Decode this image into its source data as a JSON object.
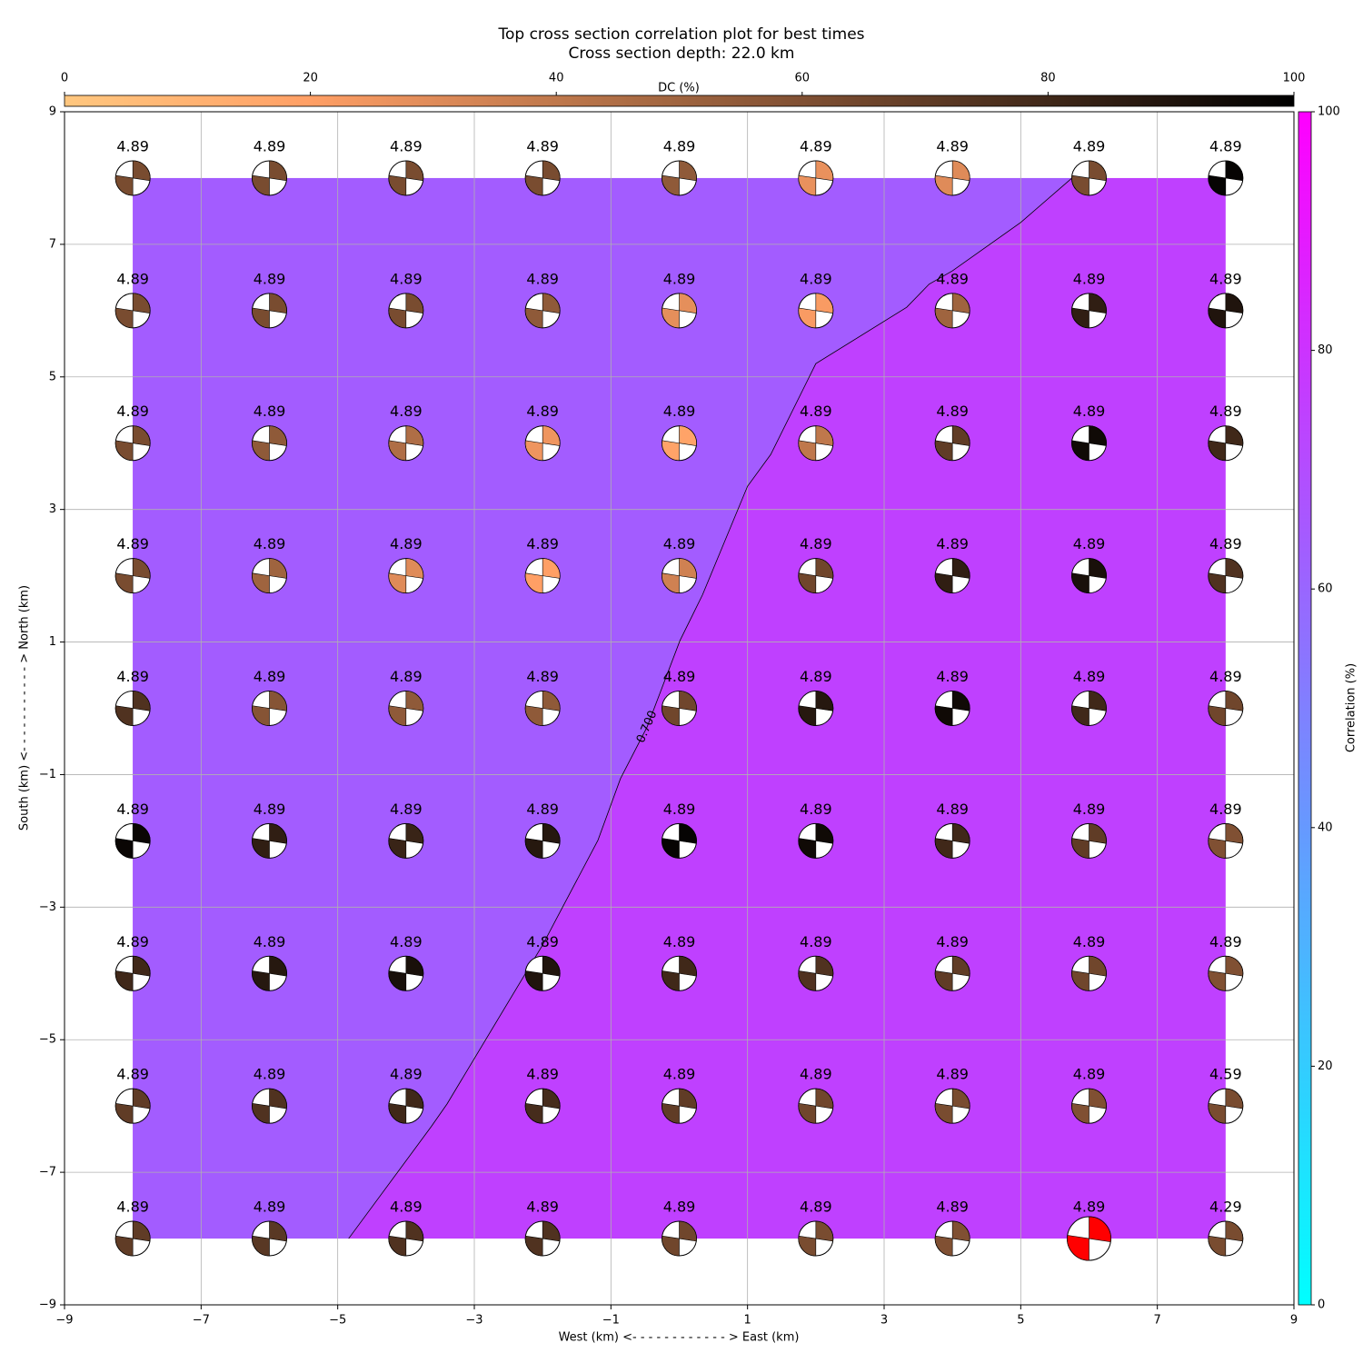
{
  "chart_data": {
    "type": "beachball-grid",
    "title": "Top cross section correlation plot for best times",
    "subtitle": "Cross section depth: 22.0 km",
    "x_label": "West (km) <- - - - - - - - - - - - > East (km)",
    "y_label": "South (km) <- - - - - - - - - - - > North (km)",
    "xlim": [
      -9,
      9
    ],
    "ylim": [
      -9,
      9
    ],
    "xticks": [
      {
        "value": -9,
        "label": "−9"
      },
      {
        "value": -7,
        "label": "−7"
      },
      {
        "value": -5,
        "label": "−5"
      },
      {
        "value": -3,
        "label": "−3"
      },
      {
        "value": -1,
        "label": "−1"
      },
      1,
      3,
      5,
      7,
      9
    ],
    "yticks": [
      {
        "value": -9,
        "label": "−9"
      },
      {
        "value": -7,
        "label": "−7"
      },
      {
        "value": -5,
        "label": "−5"
      },
      {
        "value": -3,
        "label": "−3"
      },
      {
        "value": -1,
        "label": "−1"
      },
      1,
      3,
      5,
      7,
      9
    ],
    "grid": true,
    "x": [
      -8,
      -6,
      -4,
      -2,
      0,
      2,
      4,
      6,
      8
    ],
    "y": [
      8,
      6,
      4,
      2,
      0,
      -2,
      -4,
      -6,
      -8
    ],
    "magnitudes": [
      [
        4.89,
        4.89,
        4.89,
        4.89,
        4.89,
        4.89,
        4.89,
        4.89,
        4.89
      ],
      [
        4.89,
        4.89,
        4.89,
        4.89,
        4.89,
        4.89,
        4.89,
        4.89,
        4.89
      ],
      [
        4.89,
        4.89,
        4.89,
        4.89,
        4.89,
        4.89,
        4.89,
        4.89,
        4.89
      ],
      [
        4.89,
        4.89,
        4.89,
        4.89,
        4.89,
        4.89,
        4.89,
        4.89,
        4.89
      ],
      [
        4.89,
        4.89,
        4.89,
        4.89,
        4.89,
        4.89,
        4.89,
        4.89,
        4.89
      ],
      [
        4.89,
        4.89,
        4.89,
        4.89,
        4.89,
        4.89,
        4.89,
        4.89,
        4.89
      ],
      [
        4.89,
        4.89,
        4.89,
        4.89,
        4.89,
        4.89,
        4.89,
        4.89,
        4.89
      ],
      [
        4.89,
        4.89,
        4.89,
        4.89,
        4.89,
        4.89,
        4.89,
        4.89,
        4.59
      ],
      [
        4.89,
        4.89,
        4.89,
        4.89,
        4.89,
        4.89,
        4.89,
        4.89,
        4.29
      ]
    ],
    "dc": [
      [
        62,
        62,
        62,
        62,
        55,
        27,
        30,
        62,
        98
      ],
      [
        62,
        62,
        62,
        55,
        28,
        22,
        50,
        85,
        90
      ],
      [
        62,
        55,
        45,
        25,
        18,
        40,
        70,
        95,
        80
      ],
      [
        62,
        50,
        30,
        20,
        35,
        65,
        85,
        92,
        75
      ],
      [
        75,
        58,
        55,
        55,
        65,
        88,
        95,
        80,
        65
      ],
      [
        97,
        85,
        82,
        88,
        98,
        95,
        80,
        70,
        60
      ],
      [
        80,
        88,
        92,
        90,
        80,
        75,
        70,
        65,
        60
      ],
      [
        70,
        75,
        80,
        78,
        70,
        65,
        62,
        60,
        62
      ],
      [
        70,
        72,
        75,
        75,
        65,
        62,
        60,
        60,
        62
      ]
    ],
    "highlight": {
      "x": 6,
      "y": -8,
      "color": "#ff0000"
    },
    "field_xlim": [
      -8,
      8
    ],
    "field_ylim": [
      -8,
      8
    ],
    "fill_levels": [
      64,
      75
    ],
    "contour": {
      "level": {
        "value": 70,
        "label": "0.700"
      },
      "x": [
        -4.84,
        -3.63,
        -3.4,
        -2.0,
        -1.19,
        -0.86,
        -0.47,
        0.01,
        0.34,
        1.0,
        1.34,
        2.0,
        3.33,
        3.66,
        4.0,
        5.0,
        5.75
      ],
      "y": [
        -8,
        -6.31,
        -5.97,
        -3.57,
        -1.99,
        -1.06,
        -0.28,
        1.02,
        1.71,
        3.35,
        3.83,
        5.2,
        6.05,
        6.4,
        6.6,
        7.33,
        8
      ]
    },
    "dc_colorbar": {
      "label": "DC (%)",
      "colormap": "copper_r",
      "lim": [
        0,
        100
      ],
      "ticks": [
        0,
        20,
        40,
        60,
        80,
        100
      ]
    },
    "corr_colorbar": {
      "label": "Correlation (%)",
      "colormap": "cool",
      "lim": [
        0,
        100
      ],
      "ticks": [
        0,
        20,
        40,
        60,
        80,
        100
      ]
    }
  }
}
